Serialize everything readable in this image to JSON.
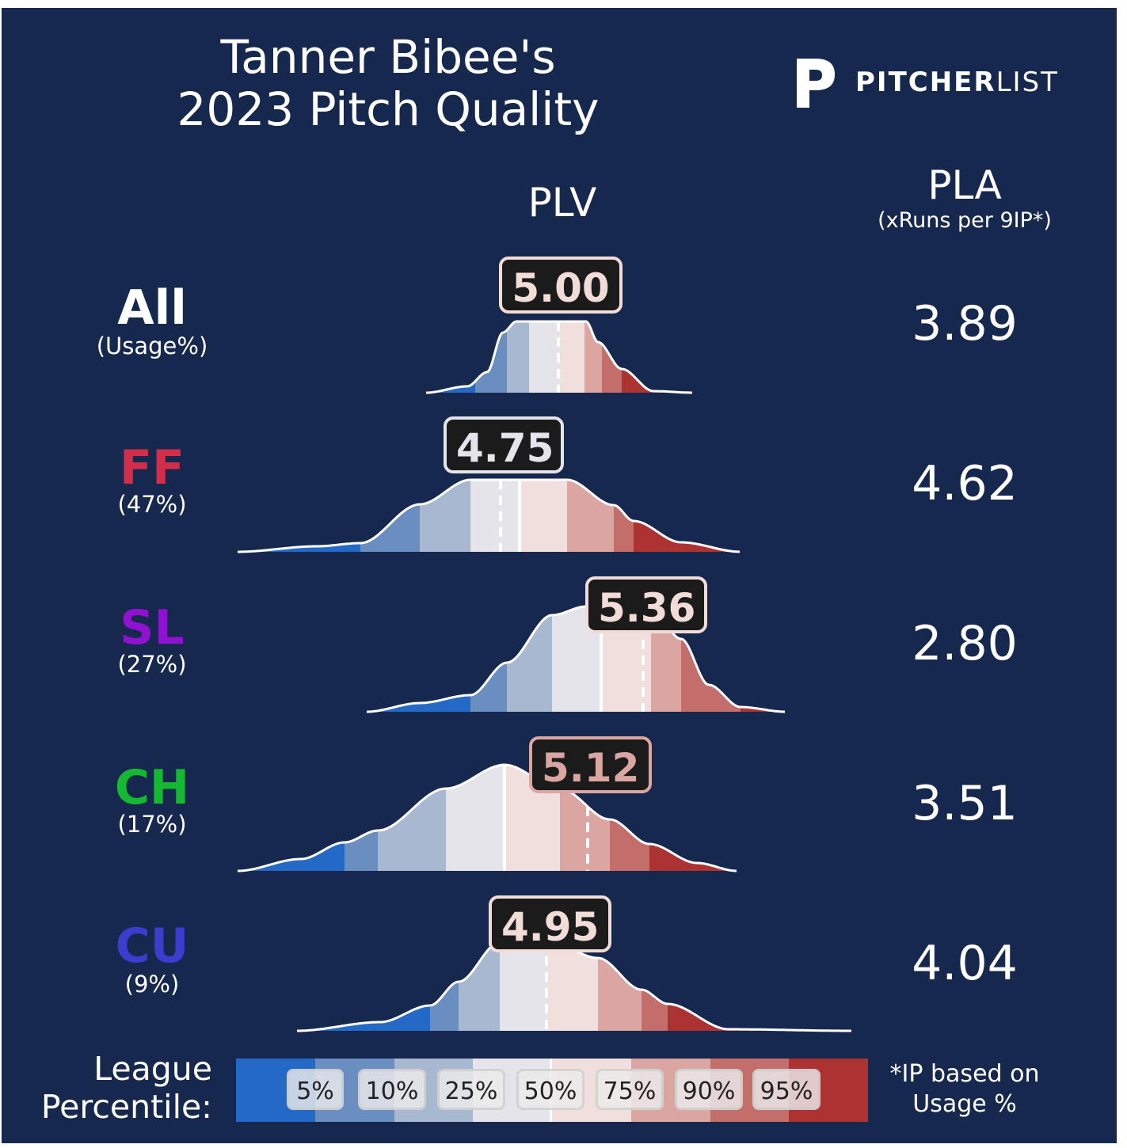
{
  "header": {
    "title_line1": "Tanner Bibee's",
    "title_line2": "2023 Pitch Quality",
    "logo_bold": "PITCHER",
    "logo_light": "LIST"
  },
  "columns": {
    "plv": "PLV",
    "pla": "PLA",
    "pla_sub": "(xRuns per 9IP*)"
  },
  "colors": {
    "background": "#16284d",
    "FF": "#d22e4b",
    "SL": "#8e12cf",
    "CH": "#14b831",
    "CU": "#3c3ccf",
    "All": "#ffffff",
    "scale": [
      "#2469c5",
      "#6a8ec0",
      "#a9b8d1",
      "#e4e4ea",
      "#f1dfde",
      "#dba5a2",
      "#c46e6b",
      "#ad3333"
    ]
  },
  "rows": [
    {
      "label": "All",
      "usage": "(Usage%)",
      "plv": "5.00",
      "pla": "3.89"
    },
    {
      "label": "FF",
      "usage": "(47%)",
      "plv": "4.75",
      "pla": "4.62"
    },
    {
      "label": "SL",
      "usage": "(27%)",
      "plv": "5.36",
      "pla": "2.80"
    },
    {
      "label": "CH",
      "usage": "(17%)",
      "plv": "5.12",
      "pla": "3.51"
    },
    {
      "label": "CU",
      "usage": "(9%)",
      "plv": "4.95",
      "pla": "4.04"
    }
  ],
  "legend": {
    "line1": "League",
    "line2": "Percentile:",
    "percentiles": [
      "5%",
      "10%",
      "25%",
      "50%",
      "75%",
      "90%",
      "95%"
    ]
  },
  "footnote": {
    "line1": "*IP based on",
    "line2": "Usage %"
  },
  "chart_data": {
    "type": "area",
    "title": "Tanner Bibee's 2023 Pitch Quality",
    "xlabel": "PLV",
    "legend": "League Percentile (bottom)",
    "series": [
      {
        "name": "All",
        "plv": 5.0,
        "pla": 3.89
      },
      {
        "name": "FF",
        "usage_pct": 47,
        "plv": 4.75,
        "pla": 4.62
      },
      {
        "name": "SL",
        "usage_pct": 27,
        "plv": 5.36,
        "pla": 2.8
      },
      {
        "name": "CH",
        "usage_pct": 17,
        "plv": 5.12,
        "pla": 3.51
      },
      {
        "name": "CU",
        "usage_pct": 9,
        "plv": 4.95,
        "pla": 4.04
      }
    ],
    "percentile_bands": [
      5,
      10,
      25,
      50,
      75,
      90,
      95
    ]
  }
}
